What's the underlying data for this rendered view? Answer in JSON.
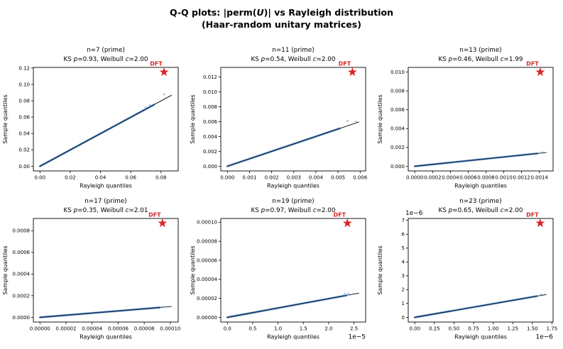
{
  "figure": {
    "title_segments": [
      {
        "t": "Q-Q plots: |perm(",
        "i": false
      },
      {
        "t": "U",
        "i": true
      },
      {
        "t": ")| vs Rayleigh distribution",
        "i": false
      }
    ],
    "subtitle": "(Haar-random unitary matrices)"
  },
  "colors": {
    "text": "#000000",
    "spine": "#000000",
    "ref_line": "#000000",
    "data_core": "#132f58",
    "data_mid": "#3c6fa6",
    "data_halo": "#9fc3e0",
    "outlier": "#86b5da",
    "star": "#d62728",
    "annotation": "#d62728"
  },
  "chart_data": [
    {
      "type": "scatter",
      "n": 7,
      "title": "n=7 (prime)",
      "subtitle_segments": [
        {
          "t": "KS ",
          "i": false
        },
        {
          "t": "p",
          "i": true
        },
        {
          "t": "=0.93, Weibull ",
          "i": false
        },
        {
          "t": "c",
          "i": true
        },
        {
          "t": "=2.00",
          "i": false
        }
      ],
      "ks_p": 0.93,
      "weibull_c": 2.0,
      "xlabel": "Rayleigh quantiles",
      "ylabel": "Sample quantiles",
      "xlim": [
        -0.00435,
        0.09135
      ],
      "ylim": [
        -0.00575,
        0.12075
      ],
      "xticks": {
        "values": [
          0,
          0.02,
          0.04,
          0.06,
          0.08
        ],
        "labels": [
          "0.00",
          "0.02",
          "0.04",
          "0.06",
          "0.08"
        ],
        "offset_text": ""
      },
      "yticks": {
        "values": [
          0,
          0.02,
          0.04,
          0.06,
          0.08,
          0.1,
          0.12
        ],
        "labels": [
          "0.00",
          "0.02",
          "0.04",
          "0.06",
          "0.08",
          "0.10",
          "0.12"
        ],
        "offset_text": ""
      },
      "qq_line": {
        "x0": 0,
        "y0": 0,
        "x1": 0.087,
        "y1": 0.0868
      },
      "dense_data_to": 0.0755,
      "outlier_points": [
        [
          0.07,
          0.0718
        ],
        [
          0.0727,
          0.0744
        ],
        [
          0.0821,
          0.0878
        ]
      ],
      "dft_star": {
        "x": 0.082,
        "y": 0.115,
        "label": "DFT"
      }
    },
    {
      "type": "scatter",
      "n": 11,
      "title": "n=11 (prime)",
      "subtitle_segments": [
        {
          "t": "KS ",
          "i": false
        },
        {
          "t": "p",
          "i": true
        },
        {
          "t": "=0.54, Weibull ",
          "i": false
        },
        {
          "t": "c",
          "i": true
        },
        {
          "t": "=2.00",
          "i": false
        }
      ],
      "ks_p": 0.54,
      "weibull_c": 2.0,
      "xlabel": "Rayleigh quantiles",
      "ylabel": "Sample quantiles",
      "xlim": [
        -0.0002975,
        0.0062475
      ],
      "ylim": [
        -0.0006325,
        0.0132825
      ],
      "xticks": {
        "values": [
          0,
          0.001,
          0.002,
          0.003,
          0.004,
          0.005,
          0.006
        ],
        "labels": [
          "0.000",
          "0.001",
          "0.002",
          "0.003",
          "0.004",
          "0.005",
          "0.006"
        ],
        "offset_text": ""
      },
      "yticks": {
        "values": [
          0,
          0.002,
          0.004,
          0.006,
          0.008,
          0.01,
          0.012
        ],
        "labels": [
          "0.000",
          "0.002",
          "0.004",
          "0.006",
          "0.008",
          "0.010",
          "0.012"
        ],
        "offset_text": ""
      },
      "qq_line": {
        "x0": 0,
        "y0": 0,
        "x1": 0.00595,
        "y1": 0.00595
      },
      "dense_data_to": 0.0051,
      "outlier_points": [
        [
          0.00543,
          0.0061
        ],
        [
          0.0058,
          0.00597
        ]
      ],
      "dft_star": {
        "x": 0.00565,
        "y": 0.01265,
        "label": "DFT"
      }
    },
    {
      "type": "scatter",
      "n": 13,
      "title": "n=13 (prime)",
      "subtitle_segments": [
        {
          "t": "KS ",
          "i": false
        },
        {
          "t": "p",
          "i": true
        },
        {
          "t": "=0.46, Weibull ",
          "i": false
        },
        {
          "t": "c",
          "i": true
        },
        {
          "t": "=1.99",
          "i": false
        }
      ],
      "ks_p": 0.46,
      "weibull_c": 1.99,
      "xlabel": "Rayleigh quantiles",
      "ylabel": "Sample quantiles",
      "xlim": [
        -7.4e-05,
        0.001554
      ],
      "ylim": [
        -0.0005,
        0.0105
      ],
      "xticks": {
        "values": [
          0,
          0.0002,
          0.0004,
          0.0006,
          0.0008,
          0.001,
          0.0012,
          0.0014
        ],
        "labels": [
          "0.0000",
          "0.0002",
          "0.0004",
          "0.0006",
          "0.0008",
          "0.0010",
          "0.0012",
          "0.0014"
        ],
        "offset_text": ""
      },
      "yticks": {
        "values": [
          0,
          0.002,
          0.004,
          0.006,
          0.008,
          0.01
        ],
        "labels": [
          "0.000",
          "0.002",
          "0.004",
          "0.006",
          "0.008",
          "0.010"
        ],
        "offset_text": ""
      },
      "qq_line": {
        "x0": 0,
        "y0": 0,
        "x1": 0.00148,
        "y1": 0.00146
      },
      "dense_data_to": 0.00138,
      "outlier_points": [
        [
          0.001435,
          0.001475
        ]
      ],
      "dft_star": {
        "x": 0.00141,
        "y": 0.01,
        "label": "DFT"
      }
    },
    {
      "type": "scatter",
      "n": 17,
      "title": "n=17 (prime)",
      "subtitle_segments": [
        {
          "t": "KS ",
          "i": false
        },
        {
          "t": "p",
          "i": true
        },
        {
          "t": "=0.35, Weibull ",
          "i": false
        },
        {
          "t": "c",
          "i": true
        },
        {
          "t": "=2.01",
          "i": false
        }
      ],
      "ks_p": 0.35,
      "weibull_c": 2.01,
      "xlabel": "Rayleigh quantiles",
      "ylabel": "Sample quantiles",
      "xlim": [
        -5.05e-06,
        0.00010605
      ],
      "ylim": [
        -4.35e-05,
        0.0009135
      ],
      "xticks": {
        "values": [
          0,
          2e-05,
          4e-05,
          6e-05,
          8e-05,
          0.0001
        ],
        "labels": [
          "0.00000",
          "0.00002",
          "0.00004",
          "0.00006",
          "0.00008",
          "0.00010"
        ],
        "offset_text": ""
      },
      "yticks": {
        "values": [
          0,
          0.0002,
          0.0004,
          0.0006,
          0.0008
        ],
        "labels": [
          "0.0000",
          "0.0002",
          "0.0004",
          "0.0006",
          "0.0008"
        ],
        "offset_text": ""
      },
      "qq_line": {
        "x0": 0,
        "y0": 0,
        "x1": 0.000101,
        "y1": 0.0001
      },
      "dense_data_to": 9.2e-05,
      "outlier_points": [
        [
          9.45e-05,
          9.85e-05
        ]
      ],
      "dft_star": {
        "x": 9.4e-05,
        "y": 0.00087,
        "label": "DFT"
      }
    },
    {
      "type": "scatter",
      "n": 19,
      "title": "n=19 (prime)",
      "subtitle_segments": [
        {
          "t": "KS ",
          "i": false
        },
        {
          "t": "p",
          "i": true
        },
        {
          "t": "=0.97, Weibull ",
          "i": false
        },
        {
          "t": "c",
          "i": true
        },
        {
          "t": "=2.00",
          "i": false
        }
      ],
      "ks_p": 0.97,
      "weibull_c": 2.0,
      "xlabel": "Rayleigh quantiles",
      "ylabel": "Sample quantiles",
      "xlim": [
        -1.3e-06,
        2.73e-05
      ],
      "ylim": [
        -4.95e-06,
        0.00010395
      ],
      "xticks": {
        "values": [
          0,
          5e-06,
          1e-05,
          1.5e-05,
          2e-05,
          2.5e-05
        ],
        "labels": [
          "0.0",
          "0.5",
          "1.0",
          "1.5",
          "2.0",
          "2.5"
        ],
        "offset_text": "1e−5"
      },
      "yticks": {
        "values": [
          0,
          2e-05,
          4e-05,
          6e-05,
          8e-05,
          0.0001
        ],
        "labels": [
          "0.00000",
          "0.00002",
          "0.00004",
          "0.00006",
          "0.00008",
          "0.00010"
        ],
        "offset_text": ""
      },
      "qq_line": {
        "x0": 0,
        "y0": 0,
        "x1": 2.6e-05,
        "y1": 2.55e-05
      },
      "dense_data_to": 2.35e-05,
      "outlier_points": [
        [
          2.32e-05,
          2.42e-05
        ],
        [
          2.39e-05,
          2.47e-05
        ]
      ],
      "dft_star": {
        "x": 2.37e-05,
        "y": 9.9e-05,
        "label": "DFT"
      }
    },
    {
      "type": "scatter",
      "n": 23,
      "title": "n=23 (prime)",
      "subtitle_segments": [
        {
          "t": "KS ",
          "i": false
        },
        {
          "t": "p",
          "i": true
        },
        {
          "t": "=0.65, Weibull ",
          "i": false
        },
        {
          "t": "c",
          "i": true
        },
        {
          "t": "=2.00",
          "i": false
        }
      ],
      "ks_p": 0.65,
      "weibull_c": 2.0,
      "xlabel": "Rayleigh quantiles",
      "ylabel": "Sample quantiles",
      "xlim": [
        -8.4e-08,
        1.764e-06
      ],
      "ylim": [
        -3.4e-07,
        7.14e-06
      ],
      "xticks": {
        "values": [
          0,
          2.5e-07,
          5e-07,
          7.5e-07,
          1e-06,
          1.25e-06,
          1.5e-06,
          1.75e-06
        ],
        "labels": [
          "0.00",
          "0.25",
          "0.50",
          "0.75",
          "1.00",
          "1.25",
          "1.50",
          "1.75"
        ],
        "offset_text": "1e−6"
      },
      "yticks": {
        "values": [
          0,
          1e-06,
          2e-06,
          3e-06,
          4e-06,
          5e-06,
          6e-06,
          7e-06
        ],
        "labels": [
          "0",
          "1",
          "2",
          "3",
          "4",
          "5",
          "6",
          "7"
        ],
        "offset_text": "1e−6"
      },
      "qq_line": {
        "x0": 0,
        "y0": 0,
        "x1": 1.68e-06,
        "y1": 1.65e-06
      },
      "dense_data_to": 1.56e-06,
      "outlier_points": [
        [
          1.61e-06,
          1.64e-06
        ]
      ],
      "dft_star": {
        "x": 1.6e-06,
        "y": 6.8e-06,
        "label": "DFT"
      }
    }
  ]
}
